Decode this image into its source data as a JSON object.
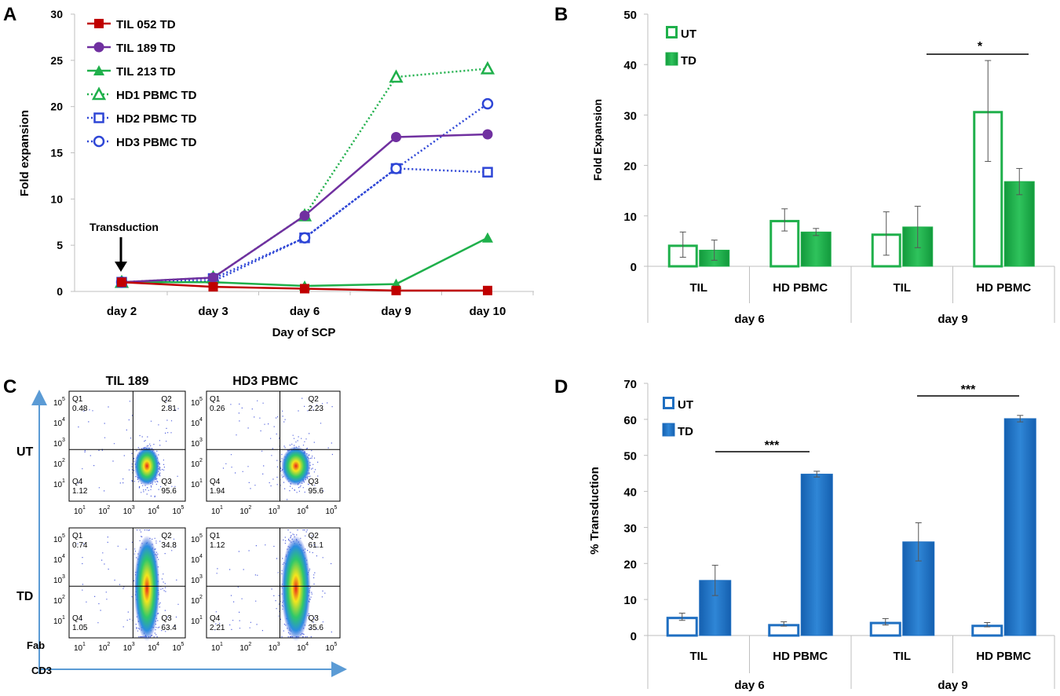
{
  "colors": {
    "red": "#c00000",
    "purple": "#7030a0",
    "green_line": "#1fb04b",
    "blue_dot": "#2e46d6",
    "green_bar": "#1fb04b",
    "blue_bar": "#1f6fc1",
    "arrow": "#5b9bd5"
  },
  "panelA": {
    "letter": "A",
    "annotation": "Transduction",
    "chart_data": {
      "type": "line",
      "categories": [
        "day 2",
        "day 3",
        "day 6",
        "day 9",
        "day 10"
      ],
      "xlabel": "Day of SCP",
      "ylabel": "Fold expansion",
      "ylim": [
        0,
        30
      ],
      "yticks": [
        "0",
        "5",
        "10",
        "15",
        "20",
        "25",
        "30"
      ],
      "series": [
        {
          "name": "TIL 052 TD",
          "values": [
            1.0,
            0.5,
            0.3,
            0.1,
            0.1
          ],
          "marker": "square",
          "style": "solid"
        },
        {
          "name": "TIL 189 TD",
          "values": [
            1.0,
            1.5,
            8.2,
            16.7,
            17.0
          ],
          "marker": "circle",
          "style": "solid"
        },
        {
          "name": "TIL 213 TD",
          "values": [
            1.0,
            1.0,
            0.6,
            0.8,
            5.8
          ],
          "marker": "triangle",
          "style": "solid"
        },
        {
          "name": "HD1 PBMC TD",
          "values": [
            1.0,
            1.5,
            8.2,
            23.2,
            24.1
          ],
          "marker": "triangle-open",
          "style": "dotted"
        },
        {
          "name": "HD2 PBMC TD",
          "values": [
            1.0,
            1.4,
            5.8,
            13.3,
            12.9
          ],
          "marker": "square-open",
          "style": "dotted"
        },
        {
          "name": "HD3 PBMC TD",
          "values": [
            1.0,
            1.1,
            5.8,
            13.3,
            20.3
          ],
          "marker": "circle-open",
          "style": "dotted"
        }
      ]
    }
  },
  "panelB": {
    "letter": "B",
    "significance": "*",
    "chart_data": {
      "type": "bar",
      "ylabel": "Fold Expansion",
      "ylim": [
        0,
        50
      ],
      "yticks": [
        "0",
        "10",
        "20",
        "30",
        "40",
        "50"
      ],
      "categories": [
        "TIL",
        "HD PBMC",
        "TIL",
        "HD PBMC"
      ],
      "groups": [
        "day 6",
        "day 9"
      ],
      "series": [
        {
          "name": "UT",
          "values": [
            4.3,
            9.2,
            6.5,
            30.8
          ],
          "errors": [
            2.5,
            2.2,
            4.3,
            10.0
          ]
        },
        {
          "name": "TD",
          "values": [
            3.2,
            6.8,
            7.8,
            16.8
          ],
          "errors": [
            2.0,
            0.7,
            4.1,
            2.6
          ]
        }
      ]
    }
  },
  "panelC": {
    "letter": "C",
    "col_titles": [
      "TIL 189",
      "HD3 PBMC"
    ],
    "row_labels": [
      "UT",
      "TD"
    ],
    "y_axis_label": "Fab",
    "x_axis_label": "CD3",
    "y_ticks": [
      "10",
      "10",
      "10",
      "10",
      "10"
    ],
    "y_exps": [
      "5",
      "4",
      "3",
      "2",
      "1"
    ],
    "x_ticks": [
      "10",
      "10",
      "10",
      "10",
      "10"
    ],
    "x_exps": [
      "1",
      "2",
      "3",
      "4",
      "5"
    ],
    "plots": [
      {
        "q1": "Q1",
        "q1v": "0.48",
        "q2": "Q2",
        "q2v": "2.81",
        "q3": "Q3",
        "q3v": "95.6",
        "q4": "Q4",
        "q4v": "1.12"
      },
      {
        "q1": "Q1",
        "q1v": "0.26",
        "q2": "Q2",
        "q2v": "2.23",
        "q3": "Q3",
        "q3v": "95.6",
        "q4": "Q4",
        "q4v": "1.94"
      },
      {
        "q1": "Q1",
        "q1v": "0.74",
        "q2": "Q2",
        "q2v": "34.8",
        "q3": "Q3",
        "q3v": "63.4",
        "q4": "Q4",
        "q4v": "1.05"
      },
      {
        "q1": "Q1",
        "q1v": "1.12",
        "q2": "Q2",
        "q2v": "61.1",
        "q3": "Q3",
        "q3v": "35.6",
        "q4": "Q4",
        "q4v": "2.21"
      }
    ]
  },
  "panelD": {
    "letter": "D",
    "significance_1": "***",
    "significance_2": "***",
    "chart_data": {
      "type": "bar",
      "ylabel": "% Transduction",
      "ylim": [
        0,
        70
      ],
      "yticks": [
        "0",
        "10",
        "20",
        "30",
        "40",
        "50",
        "60",
        "70"
      ],
      "categories": [
        "TIL",
        "HD PBMC",
        "TIL",
        "HD PBMC"
      ],
      "groups": [
        "day 6",
        "day 9"
      ],
      "series": [
        {
          "name": "UT",
          "values": [
            5.2,
            3.2,
            3.8,
            3.0
          ],
          "errors": [
            1.0,
            0.6,
            0.9,
            0.6
          ]
        },
        {
          "name": "TD",
          "values": [
            15.3,
            44.8,
            26.0,
            60.2
          ],
          "errors": [
            4.2,
            0.8,
            5.3,
            0.9
          ]
        }
      ]
    }
  }
}
